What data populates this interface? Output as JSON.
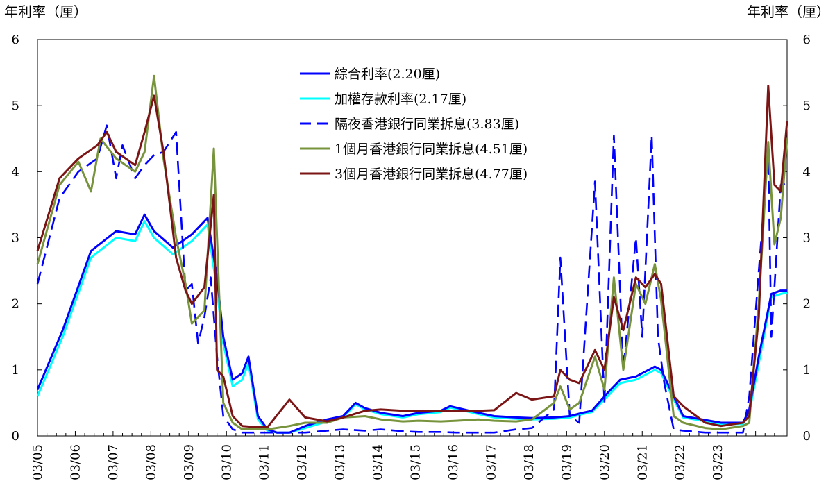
{
  "chart_data": {
    "type": "line",
    "unit_label_left": "年利率（厘）",
    "unit_label_right": "年利率（厘）",
    "ylim": [
      0,
      6
    ],
    "yticks": [
      "0",
      "1",
      "2",
      "3",
      "4",
      "5",
      "6"
    ],
    "x_start": "2003-05",
    "x_end": "2023-03",
    "xtick_labels": [
      "03/05",
      "03/06",
      "03/07",
      "03/08",
      "03/09",
      "03/10",
      "03/11",
      "03/12",
      "03/13",
      "03/14",
      "03/15",
      "03/16",
      "03/17",
      "03/18",
      "03/19",
      "03/20",
      "03/21",
      "03/22",
      "03/23"
    ],
    "legend_position": "top-center",
    "grid": false,
    "series": [
      {
        "name": "綜合利率(2.20厘)",
        "color": "#0000ff",
        "dash": "solid",
        "points": [
          [
            "2003-05",
            0.7
          ],
          [
            "2004-01",
            1.6
          ],
          [
            "2004-10",
            2.8
          ],
          [
            "2005-06",
            3.1
          ],
          [
            "2005-12",
            3.05
          ],
          [
            "2006-03",
            3.35
          ],
          [
            "2006-06",
            3.1
          ],
          [
            "2006-12",
            2.85
          ],
          [
            "2007-06",
            3.05
          ],
          [
            "2007-11",
            3.3
          ],
          [
            "2008-02",
            2.4
          ],
          [
            "2008-04",
            1.5
          ],
          [
            "2008-07",
            0.85
          ],
          [
            "2008-10",
            0.95
          ],
          [
            "2008-12",
            1.2
          ],
          [
            "2009-03",
            0.3
          ],
          [
            "2009-06",
            0.1
          ],
          [
            "2009-09",
            0.05
          ],
          [
            "2010-01",
            0.05
          ],
          [
            "2010-06",
            0.15
          ],
          [
            "2011-01",
            0.25
          ],
          [
            "2011-06",
            0.3
          ],
          [
            "2011-10",
            0.5
          ],
          [
            "2012-01",
            0.42
          ],
          [
            "2012-06",
            0.35
          ],
          [
            "2013-01",
            0.3
          ],
          [
            "2013-06",
            0.35
          ],
          [
            "2014-01",
            0.38
          ],
          [
            "2014-04",
            0.45
          ],
          [
            "2015-01",
            0.35
          ],
          [
            "2015-06",
            0.3
          ],
          [
            "2016-01",
            0.28
          ],
          [
            "2016-06",
            0.27
          ],
          [
            "2017-01",
            0.28
          ],
          [
            "2017-06",
            0.3
          ],
          [
            "2017-10",
            0.35
          ],
          [
            "2018-01",
            0.38
          ],
          [
            "2018-06",
            0.65
          ],
          [
            "2018-10",
            0.85
          ],
          [
            "2019-03",
            0.9
          ],
          [
            "2019-09",
            1.05
          ],
          [
            "2019-11",
            1.0
          ],
          [
            "2020-03",
            0.6
          ],
          [
            "2020-06",
            0.3
          ],
          [
            "2020-12",
            0.25
          ],
          [
            "2021-06",
            0.2
          ],
          [
            "2022-01",
            0.2
          ],
          [
            "2022-03",
            0.4
          ],
          [
            "2022-06",
            1.2
          ],
          [
            "2022-10",
            2.15
          ],
          [
            "2023-01",
            2.2
          ],
          [
            "2023-03",
            2.2
          ]
        ]
      },
      {
        "name": "加權存款利率(2.17厘)",
        "color": "#00ffff",
        "dash": "solid",
        "points": [
          [
            "2003-05",
            0.6
          ],
          [
            "2004-01",
            1.5
          ],
          [
            "2004-10",
            2.7
          ],
          [
            "2005-06",
            3.0
          ],
          [
            "2005-12",
            2.95
          ],
          [
            "2006-03",
            3.25
          ],
          [
            "2006-06",
            3.0
          ],
          [
            "2006-12",
            2.75
          ],
          [
            "2007-06",
            2.95
          ],
          [
            "2007-11",
            3.2
          ],
          [
            "2008-02",
            2.2
          ],
          [
            "2008-04",
            1.4
          ],
          [
            "2008-07",
            0.75
          ],
          [
            "2008-10",
            0.85
          ],
          [
            "2008-12",
            1.1
          ],
          [
            "2009-03",
            0.25
          ],
          [
            "2009-06",
            0.08
          ],
          [
            "2009-09",
            0.05
          ],
          [
            "2010-01",
            0.05
          ],
          [
            "2010-06",
            0.12
          ],
          [
            "2011-01",
            0.22
          ],
          [
            "2011-06",
            0.28
          ],
          [
            "2011-10",
            0.48
          ],
          [
            "2012-01",
            0.4
          ],
          [
            "2012-06",
            0.33
          ],
          [
            "2013-01",
            0.28
          ],
          [
            "2013-06",
            0.33
          ],
          [
            "2014-01",
            0.36
          ],
          [
            "2014-04",
            0.43
          ],
          [
            "2015-01",
            0.33
          ],
          [
            "2015-06",
            0.28
          ],
          [
            "2016-01",
            0.26
          ],
          [
            "2016-06",
            0.25
          ],
          [
            "2017-01",
            0.26
          ],
          [
            "2017-06",
            0.28
          ],
          [
            "2017-10",
            0.33
          ],
          [
            "2018-01",
            0.36
          ],
          [
            "2018-06",
            0.6
          ],
          [
            "2018-10",
            0.8
          ],
          [
            "2019-03",
            0.85
          ],
          [
            "2019-09",
            1.0
          ],
          [
            "2019-11",
            0.95
          ],
          [
            "2020-03",
            0.55
          ],
          [
            "2020-06",
            0.28
          ],
          [
            "2020-12",
            0.23
          ],
          [
            "2021-06",
            0.18
          ],
          [
            "2022-01",
            0.18
          ],
          [
            "2022-03",
            0.35
          ],
          [
            "2022-06",
            1.1
          ],
          [
            "2022-10",
            2.1
          ],
          [
            "2023-01",
            2.15
          ],
          [
            "2023-03",
            2.17
          ]
        ]
      },
      {
        "name": "隔夜香港銀行同業拆息(3.83厘)",
        "color": "#0000ff",
        "dash": "dashed",
        "points": [
          [
            "2003-05",
            2.3
          ],
          [
            "2003-12",
            3.6
          ],
          [
            "2004-06",
            4.0
          ],
          [
            "2004-12",
            4.2
          ],
          [
            "2005-03",
            4.7
          ],
          [
            "2005-06",
            3.9
          ],
          [
            "2005-08",
            4.4
          ],
          [
            "2005-12",
            3.9
          ],
          [
            "2006-03",
            4.1
          ],
          [
            "2006-06",
            4.25
          ],
          [
            "2006-09",
            4.3
          ],
          [
            "2007-01",
            4.6
          ],
          [
            "2007-04",
            2.2
          ],
          [
            "2007-06",
            2.3
          ],
          [
            "2007-08",
            1.4
          ],
          [
            "2007-10",
            1.8
          ],
          [
            "2007-12",
            2.4
          ],
          [
            "2008-02",
            1.2
          ],
          [
            "2008-04",
            0.3
          ],
          [
            "2008-07",
            0.1
          ],
          [
            "2008-10",
            0.05
          ],
          [
            "2009-01",
            0.05
          ],
          [
            "2009-06",
            0.05
          ],
          [
            "2010-01",
            0.05
          ],
          [
            "2010-06",
            0.05
          ],
          [
            "2011-01",
            0.08
          ],
          [
            "2011-06",
            0.1
          ],
          [
            "2012-01",
            0.08
          ],
          [
            "2012-06",
            0.1
          ],
          [
            "2013-01",
            0.07
          ],
          [
            "2013-06",
            0.06
          ],
          [
            "2014-01",
            0.06
          ],
          [
            "2014-06",
            0.05
          ],
          [
            "2015-01",
            0.05
          ],
          [
            "2015-06",
            0.05
          ],
          [
            "2016-01",
            0.1
          ],
          [
            "2016-06",
            0.12
          ],
          [
            "2017-01",
            0.4
          ],
          [
            "2017-03",
            2.7
          ],
          [
            "2017-06",
            0.3
          ],
          [
            "2017-09",
            0.2
          ],
          [
            "2018-02",
            3.85
          ],
          [
            "2018-05",
            0.5
          ],
          [
            "2018-08",
            4.55
          ],
          [
            "2018-11",
            1.0
          ],
          [
            "2019-03",
            3.0
          ],
          [
            "2019-05",
            1.5
          ],
          [
            "2019-08",
            4.55
          ],
          [
            "2019-10",
            1.5
          ],
          [
            "2019-12",
            0.8
          ],
          [
            "2020-03",
            0.1
          ],
          [
            "2020-06",
            0.08
          ],
          [
            "2021-01",
            0.05
          ],
          [
            "2021-06",
            0.05
          ],
          [
            "2022-01",
            0.05
          ],
          [
            "2022-03",
            0.6
          ],
          [
            "2022-06",
            2.5
          ],
          [
            "2022-09",
            4.3
          ],
          [
            "2022-10",
            1.5
          ],
          [
            "2023-01",
            3.8
          ],
          [
            "2023-03",
            3.83
          ]
        ]
      },
      {
        "name": "1個月香港銀行同業拆息(4.51厘)",
        "color": "#77933c",
        "dash": "solid",
        "points": [
          [
            "2003-05",
            2.6
          ],
          [
            "2003-12",
            3.8
          ],
          [
            "2004-06",
            4.15
          ],
          [
            "2004-10",
            3.7
          ],
          [
            "2005-01",
            4.5
          ],
          [
            "2005-06",
            4.2
          ],
          [
            "2005-12",
            4.0
          ],
          [
            "2006-03",
            4.3
          ],
          [
            "2006-06",
            5.45
          ],
          [
            "2006-09",
            4.2
          ],
          [
            "2007-01",
            3.0
          ],
          [
            "2007-04",
            2.3
          ],
          [
            "2007-06",
            1.7
          ],
          [
            "2007-10",
            1.9
          ],
          [
            "2008-01",
            4.35
          ],
          [
            "2008-02",
            3.0
          ],
          [
            "2008-04",
            0.5
          ],
          [
            "2008-07",
            0.2
          ],
          [
            "2008-10",
            0.1
          ],
          [
            "2009-01",
            0.1
          ],
          [
            "2009-06",
            0.1
          ],
          [
            "2010-01",
            0.15
          ],
          [
            "2010-06",
            0.2
          ],
          [
            "2011-01",
            0.2
          ],
          [
            "2011-06",
            0.28
          ],
          [
            "2012-01",
            0.3
          ],
          [
            "2012-06",
            0.25
          ],
          [
            "2013-01",
            0.22
          ],
          [
            "2013-06",
            0.23
          ],
          [
            "2014-01",
            0.22
          ],
          [
            "2014-06",
            0.23
          ],
          [
            "2015-01",
            0.25
          ],
          [
            "2015-06",
            0.23
          ],
          [
            "2016-01",
            0.22
          ],
          [
            "2016-06",
            0.25
          ],
          [
            "2017-01",
            0.5
          ],
          [
            "2017-03",
            0.75
          ],
          [
            "2017-06",
            0.4
          ],
          [
            "2017-09",
            0.5
          ],
          [
            "2018-02",
            1.2
          ],
          [
            "2018-05",
            0.7
          ],
          [
            "2018-08",
            2.4
          ],
          [
            "2018-11",
            1.0
          ],
          [
            "2019-03",
            2.3
          ],
          [
            "2019-06",
            2.0
          ],
          [
            "2019-09",
            2.6
          ],
          [
            "2019-11",
            2.05
          ],
          [
            "2020-03",
            0.3
          ],
          [
            "2020-06",
            0.2
          ],
          [
            "2021-01",
            0.12
          ],
          [
            "2021-06",
            0.1
          ],
          [
            "2022-01",
            0.15
          ],
          [
            "2022-03",
            0.2
          ],
          [
            "2022-06",
            2.0
          ],
          [
            "2022-09",
            4.45
          ],
          [
            "2022-11",
            2.9
          ],
          [
            "2023-01",
            3.3
          ],
          [
            "2023-03",
            4.51
          ]
        ]
      },
      {
        "name": "3個月香港銀行同業拆息(4.77厘)",
        "color": "#7b1515",
        "dash": "solid",
        "points": [
          [
            "2003-05",
            2.8
          ],
          [
            "2003-12",
            3.9
          ],
          [
            "2004-06",
            4.2
          ],
          [
            "2004-12",
            4.4
          ],
          [
            "2005-03",
            4.6
          ],
          [
            "2005-06",
            4.3
          ],
          [
            "2005-12",
            4.1
          ],
          [
            "2006-03",
            4.6
          ],
          [
            "2006-06",
            5.15
          ],
          [
            "2006-09",
            4.3
          ],
          [
            "2007-01",
            2.7
          ],
          [
            "2007-04",
            2.2
          ],
          [
            "2007-06",
            2.0
          ],
          [
            "2007-10",
            2.25
          ],
          [
            "2008-01",
            3.65
          ],
          [
            "2008-02",
            1.0
          ],
          [
            "2008-04",
            0.9
          ],
          [
            "2008-07",
            0.3
          ],
          [
            "2008-10",
            0.15
          ],
          [
            "2009-01",
            0.14
          ],
          [
            "2009-06",
            0.13
          ],
          [
            "2010-01",
            0.55
          ],
          [
            "2010-06",
            0.28
          ],
          [
            "2011-01",
            0.22
          ],
          [
            "2011-06",
            0.28
          ],
          [
            "2012-01",
            0.38
          ],
          [
            "2012-06",
            0.4
          ],
          [
            "2013-01",
            0.38
          ],
          [
            "2013-06",
            0.38
          ],
          [
            "2014-01",
            0.38
          ],
          [
            "2014-06",
            0.38
          ],
          [
            "2015-01",
            0.38
          ],
          [
            "2015-06",
            0.39
          ],
          [
            "2016-01",
            0.65
          ],
          [
            "2016-06",
            0.55
          ],
          [
            "2017-01",
            0.6
          ],
          [
            "2017-03",
            1.0
          ],
          [
            "2017-06",
            0.85
          ],
          [
            "2017-09",
            0.8
          ],
          [
            "2018-02",
            1.3
          ],
          [
            "2018-05",
            1.0
          ],
          [
            "2018-08",
            2.1
          ],
          [
            "2018-11",
            1.6
          ],
          [
            "2019-03",
            2.4
          ],
          [
            "2019-06",
            2.25
          ],
          [
            "2019-09",
            2.45
          ],
          [
            "2019-11",
            2.3
          ],
          [
            "2020-03",
            0.6
          ],
          [
            "2020-06",
            0.45
          ],
          [
            "2021-01",
            0.2
          ],
          [
            "2021-06",
            0.15
          ],
          [
            "2022-01",
            0.2
          ],
          [
            "2022-03",
            0.3
          ],
          [
            "2022-06",
            1.8
          ],
          [
            "2022-09",
            5.3
          ],
          [
            "2022-11",
            3.8
          ],
          [
            "2023-01",
            3.7
          ],
          [
            "2023-03",
            4.77
          ]
        ]
      }
    ]
  }
}
